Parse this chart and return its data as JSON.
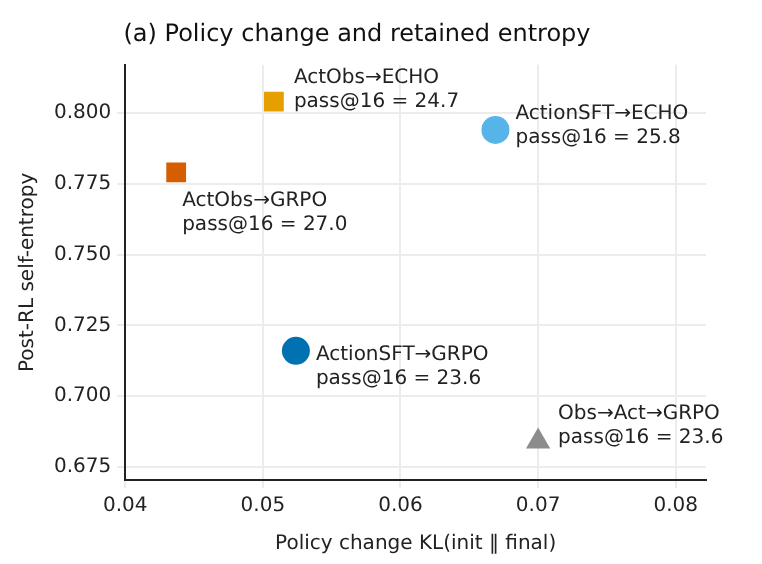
{
  "chart_data": {
    "type": "scatter",
    "title": "(a) Policy change and retained entropy",
    "xlabel": "Policy change KL(init ‖ final)",
    "ylabel": "Post-RL self-entropy",
    "series": [
      {
        "name": "ActObs→ECHO",
        "color": "#e69f00",
        "marker": "square",
        "x": [
          0.0508
        ],
        "values": [
          0.804
        ]
      },
      {
        "name": "ActionSFT→ECHO",
        "color": "#56b4e9",
        "marker": "circle",
        "x": [
          0.0669
        ],
        "values": [
          0.794
        ]
      },
      {
        "name": "ActObs→GRPO",
        "color": "#d55e00",
        "marker": "square",
        "x": [
          0.0437
        ],
        "values": [
          0.779
        ]
      },
      {
        "name": "ActionSFT→GRPO",
        "color": "#0072b2",
        "marker": "circle",
        "x": [
          0.0524
        ],
        "values": [
          0.716
        ]
      },
      {
        "name": "Obs→Act→GRPO",
        "color": "#8c8c8c",
        "marker": "triangle",
        "x": [
          0.07
        ],
        "values": [
          0.684
        ]
      }
    ],
    "annotations": [
      {
        "text": "pass@16 = 24.7",
        "x": 0.0508,
        "y": 0.804
      },
      {
        "text": "pass@16 = 25.8",
        "x": 0.0669,
        "y": 0.794
      },
      {
        "text": "pass@16 = 27.0",
        "x": 0.0437,
        "y": 0.779
      },
      {
        "text": "pass@16 = 23.6",
        "x": 0.0524,
        "y": 0.716
      },
      {
        "text": "pass@16 = 23.6",
        "x": 0.07,
        "y": 0.684
      }
    ],
    "xlim": [
      0.04,
      0.0822
    ],
    "xticks": [
      {
        "value": 0.04,
        "label": "0.04"
      },
      {
        "value": 0.05,
        "label": "0.05"
      },
      {
        "value": 0.06,
        "label": "0.06"
      },
      {
        "value": 0.07,
        "label": "0.07"
      },
      {
        "value": 0.08,
        "label": "0.08"
      }
    ],
    "ylim": [
      0.6704,
      0.817
    ],
    "yticks": [
      {
        "value": 0.675,
        "label": "0.675"
      },
      {
        "value": 0.7,
        "label": "0.700"
      },
      {
        "value": 0.725,
        "label": "0.725"
      },
      {
        "value": 0.75,
        "label": "0.750"
      },
      {
        "value": 0.775,
        "label": "0.775"
      },
      {
        "value": 0.8,
        "label": "0.800"
      }
    ],
    "grid": true,
    "legend": false
  }
}
